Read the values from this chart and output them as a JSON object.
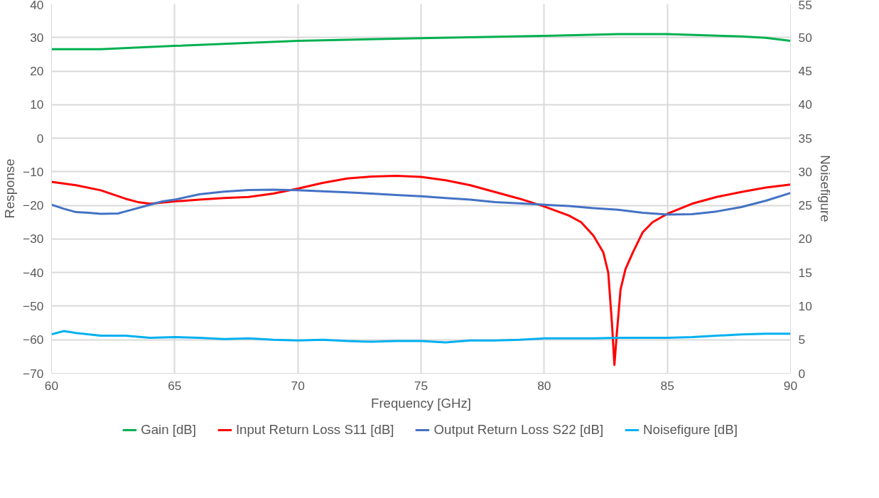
{
  "chart_data": {
    "type": "line",
    "xlabel": "Frequency [GHz]",
    "ylabel": "Response",
    "y2label": "Noisefigure",
    "xlim": [
      60,
      90
    ],
    "xticks": [
      60,
      65,
      70,
      75,
      80,
      85,
      90
    ],
    "ylim": [
      -70,
      40
    ],
    "yticks": [
      -70,
      -60,
      -50,
      -40,
      -30,
      -20,
      -10,
      0,
      10,
      20,
      30,
      40
    ],
    "y2lim": [
      0,
      55
    ],
    "y2ticks": [
      0,
      5,
      10,
      15,
      20,
      25,
      30,
      35,
      40,
      45,
      50,
      55
    ],
    "grid": true,
    "legend": "bottom",
    "line_style": "solid",
    "series": [
      {
        "name": "Gain [dB]",
        "color": "#00b050",
        "x": [
          60,
          62,
          65,
          70,
          75,
          80,
          83,
          85,
          88,
          89,
          90
        ],
        "values": [
          26.5,
          26.5,
          27.5,
          29,
          29.8,
          30.5,
          31,
          31,
          30.3,
          29.9,
          29
        ]
      },
      {
        "name": "Input Return Loss S11 [dB]",
        "color": "#ff0000",
        "x": [
          60,
          61,
          62,
          63,
          63.5,
          64,
          65,
          66,
          67,
          68,
          69,
          70,
          71,
          72,
          73,
          74,
          75,
          76,
          77,
          78,
          79,
          80,
          81,
          81.5,
          82,
          82.4,
          82.6,
          82.75,
          82.85,
          82.95,
          83.1,
          83.3,
          83.6,
          84,
          84.4,
          85,
          86,
          87,
          88,
          89,
          90
        ],
        "values": [
          -13,
          -14,
          -15.5,
          -18,
          -19,
          -19.5,
          -18.8,
          -18.3,
          -17.8,
          -17.5,
          -16.5,
          -15,
          -13.3,
          -12,
          -11.4,
          -11.2,
          -11.5,
          -12.5,
          -14,
          -16,
          -18,
          -20.3,
          -23,
          -25,
          -29,
          -34,
          -40,
          -55,
          -67.5,
          -58,
          -45,
          -39,
          -34,
          -28,
          -25,
          -22.5,
          -19.5,
          -17.5,
          -16,
          -14.7,
          -13.8
        ]
      },
      {
        "name": "Output Return Loss S22 [dB]",
        "color": "#4472c4",
        "x": [
          60,
          60.5,
          61,
          61.5,
          62,
          62.7,
          63,
          64,
          64.5,
          65,
          66,
          67,
          68,
          69,
          70,
          71,
          72,
          73,
          74,
          75,
          76,
          77,
          78,
          79,
          80,
          81,
          82,
          83,
          84,
          85,
          86,
          87,
          88,
          89,
          90
        ],
        "values": [
          -19.8,
          -21,
          -22,
          -22.2,
          -22.5,
          -22.4,
          -21.8,
          -19.8,
          -18.8,
          -18.3,
          -16.7,
          -15.9,
          -15.4,
          -15.3,
          -15.5,
          -15.8,
          -16.1,
          -16.5,
          -16.9,
          -17.3,
          -17.8,
          -18.3,
          -19,
          -19.4,
          -19.8,
          -20.2,
          -20.8,
          -21.3,
          -22.2,
          -22.7,
          -22.6,
          -21.8,
          -20.5,
          -18.6,
          -16.3
        ]
      },
      {
        "name": "Noisefigure [dB]",
        "color": "#00b0f0",
        "axis": "y2",
        "x": [
          60,
          60.5,
          61,
          62,
          63,
          64,
          65,
          66,
          67,
          68,
          69,
          70,
          71,
          72,
          73,
          74,
          75,
          76,
          77,
          78,
          79,
          80,
          81,
          82,
          83,
          84,
          85,
          86,
          87,
          88,
          89,
          90
        ],
        "values": [
          5.8,
          6.3,
          6.0,
          5.6,
          5.6,
          5.3,
          5.4,
          5.3,
          5.1,
          5.2,
          5.0,
          4.9,
          5.0,
          4.8,
          4.7,
          4.8,
          4.8,
          4.6,
          4.9,
          4.9,
          5.0,
          5.2,
          5.2,
          5.2,
          5.3,
          5.3,
          5.3,
          5.4,
          5.6,
          5.8,
          5.9,
          5.9
        ]
      }
    ]
  }
}
